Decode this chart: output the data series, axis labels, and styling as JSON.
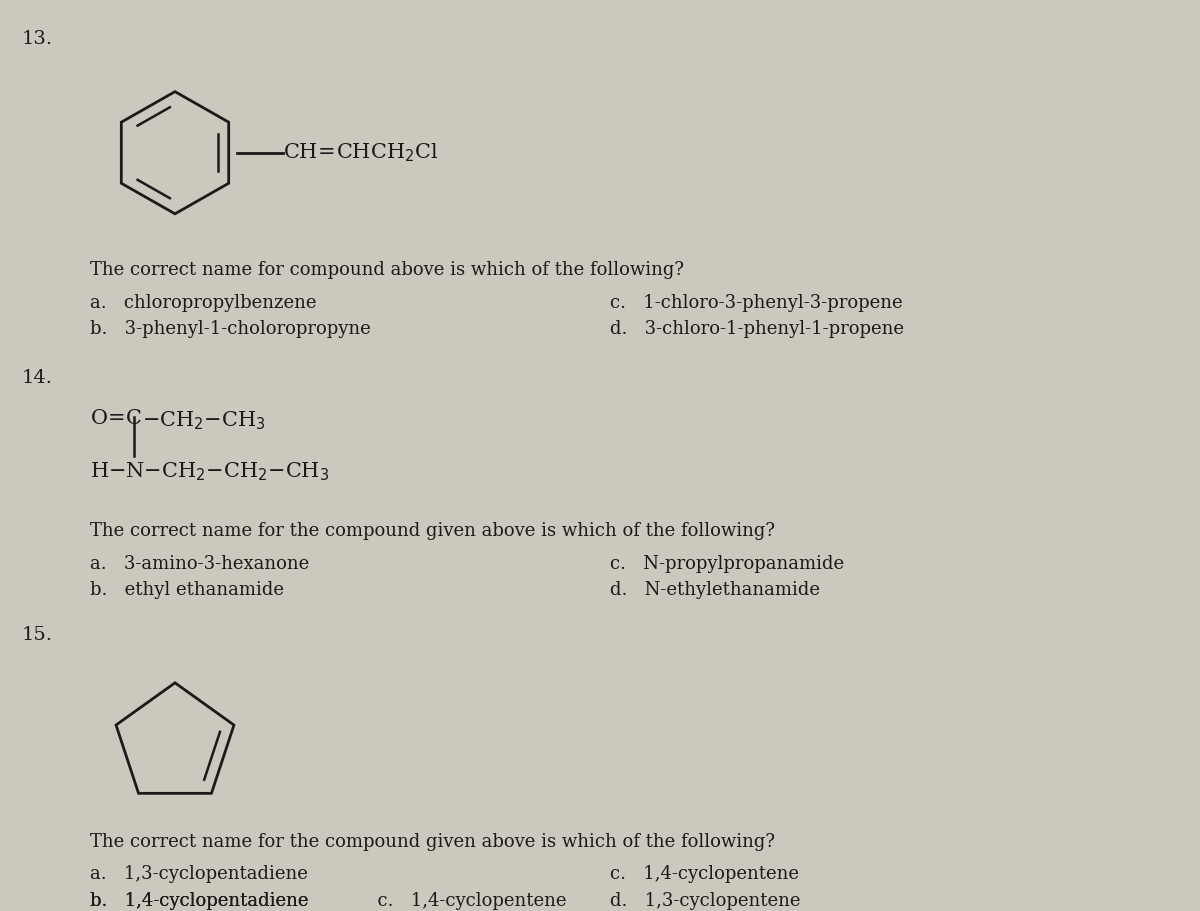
{
  "bg_color": "#cdc8be",
  "text_color": "#1a1a1a",
  "body_fontsize": 13,
  "q13_number": "13.",
  "q14_number": "14.",
  "q15_number": "15.",
  "q13_question": "The correct name for compound above is which of the following?",
  "q13_a": "a.   chloropropylbenzene",
  "q13_b": "b.   3-phenyl-1-choloropropyne",
  "q13_c": "c.   1-chloro-3-phenyl-3-propene",
  "q13_d": "d.   3-chloro-1-phenyl-1-propene",
  "q14_question": "The correct name for the compound given above is which of the following?",
  "q14_a": "a.   3-amino-3-hexanone",
  "q14_b": "b.   ethyl ethanamide",
  "q14_c": "c.   N-propylpropanamide",
  "q14_d": "d.   N-ethylethanamide",
  "q15_question": "The correct name for the compound given above is which of the following?",
  "q15_a": "a.   1,3-cyclopentadiene",
  "q15_b": "b.   1,4-cyclopentadiene",
  "q15_c": "c.   1,4-cyclopentene",
  "q15_d": "d.   1,3-cyclopentene"
}
